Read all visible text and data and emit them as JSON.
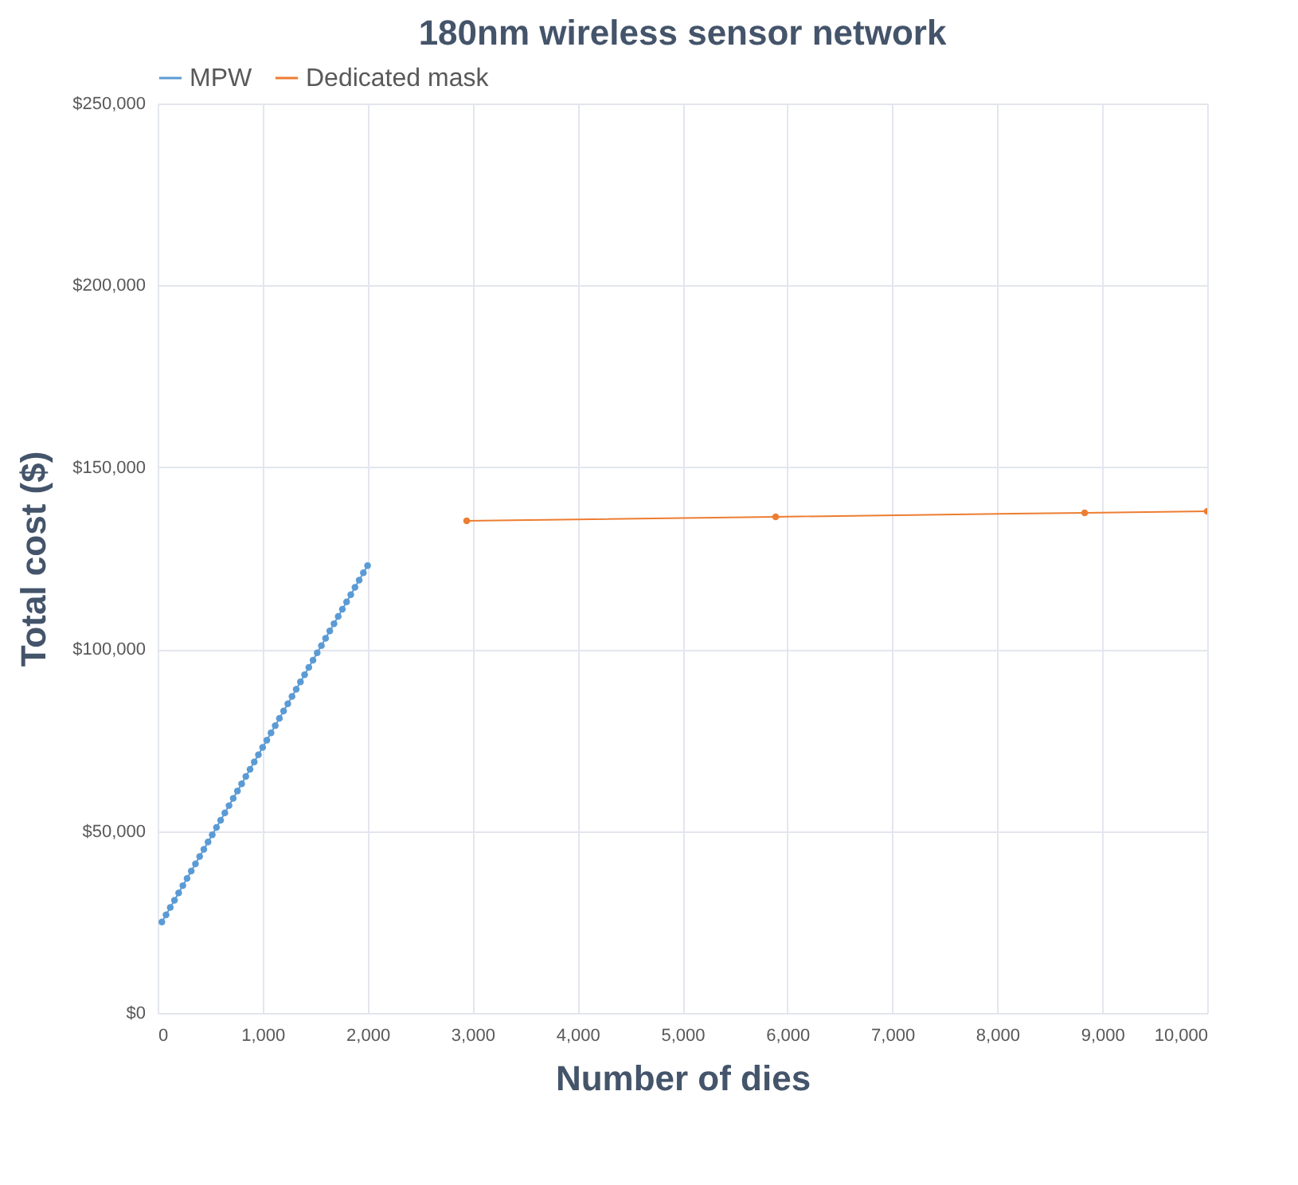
{
  "chart_data": {
    "type": "line",
    "title": "180nm wireless sensor network",
    "xlabel": "Number of dies",
    "ylabel": "Total cost ($)",
    "series": [
      {
        "name": "MPW",
        "color": "#5b9bd5",
        "x": [
          40,
          80,
          120,
          160,
          200,
          240,
          280,
          320,
          360,
          400,
          440,
          480,
          520,
          560,
          600,
          640,
          680,
          720,
          760,
          800,
          840,
          880,
          920,
          960,
          1000,
          1040,
          1080,
          1120,
          1160,
          1200,
          1240,
          1280,
          1320,
          1360,
          1400,
          1440,
          1480,
          1520,
          1560,
          1600,
          1640,
          1680,
          1720,
          1760,
          1800,
          1840,
          1880,
          1920,
          1960,
          2000
        ],
        "values": [
          25000,
          27000,
          29000,
          31000,
          33000,
          35000,
          37000,
          39000,
          41000,
          43000,
          45000,
          47000,
          49000,
          51000,
          53000,
          55000,
          57000,
          59000,
          61000,
          63000,
          65000,
          67000,
          69000,
          71000,
          73000,
          75000,
          77000,
          79000,
          81000,
          83000,
          85000,
          87000,
          89000,
          91000,
          93000,
          95000,
          97000,
          99000,
          101000,
          103000,
          105000,
          107000,
          109000,
          111000,
          113000,
          115000,
          117000,
          119000,
          121000,
          123000
        ]
      },
      {
        "name": "Dedicated mask",
        "color": "#ed7d31",
        "x": [
          2944,
          5888,
          8832,
          10000
        ],
        "values": [
          135300,
          136400,
          137500,
          137900
        ]
      }
    ],
    "xlim": [
      0,
      10000
    ],
    "xticks": [
      0,
      {
        "value": 1000,
        "label": "1,000"
      },
      {
        "value": 2000,
        "label": "2,000"
      },
      {
        "value": 3000,
        "label": "3,000"
      },
      {
        "value": 4000,
        "label": "4,000"
      },
      {
        "value": 5000,
        "label": "5,000"
      },
      {
        "value": 6000,
        "label": "6,000"
      },
      {
        "value": 7000,
        "label": "7,000"
      },
      {
        "value": 8000,
        "label": "8,000"
      },
      {
        "value": 9000,
        "label": "9,000"
      },
      {
        "value": 10000,
        "label": "10,000"
      }
    ],
    "ylim": [
      0,
      250000
    ],
    "yticks": [
      {
        "value": 0,
        "label": "$0"
      },
      {
        "value": 50000,
        "label": "$50,000"
      },
      {
        "value": 100000,
        "label": "$100,000"
      },
      {
        "value": 150000,
        "label": "$150,000"
      },
      {
        "value": 200000,
        "label": "$200,000"
      },
      {
        "value": 250000,
        "label": "$250,000"
      }
    ],
    "grid": true,
    "legend": "top",
    "marker": "circle",
    "line_style": "solid"
  }
}
